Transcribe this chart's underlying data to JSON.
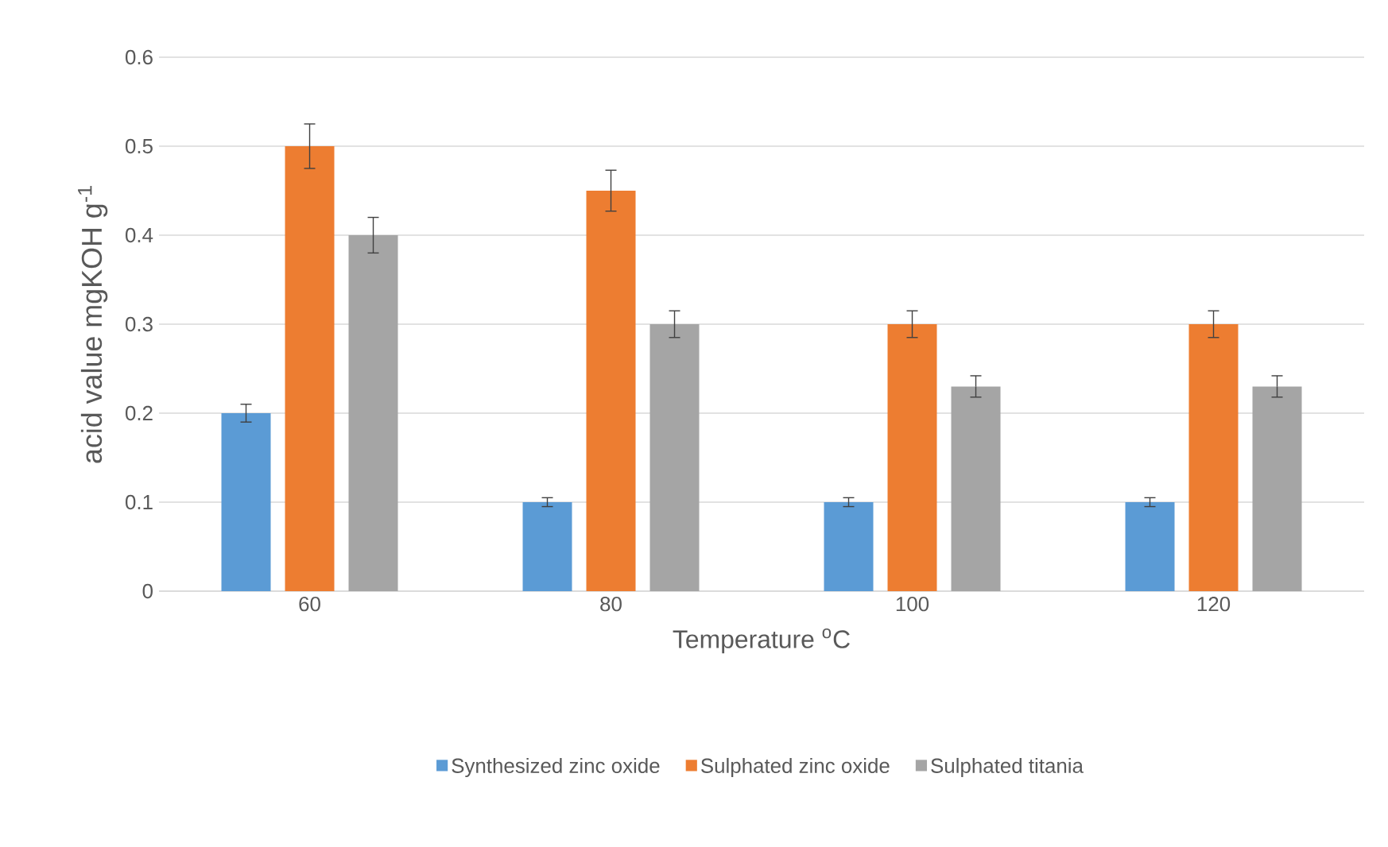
{
  "chart_data": {
    "type": "bar",
    "xlabel": "Temperature  $^{o}$C",
    "ylabel": "acid value mgKOH g$^{-1}$",
    "categories": [
      "60",
      "80",
      "100",
      "120"
    ],
    "series": [
      {
        "name": "Synthesized zinc oxide",
        "color": "#5b9bd5",
        "values": [
          0.2,
          0.1,
          0.1,
          0.1
        ],
        "errors": [
          0.01,
          0.005,
          0.005,
          0.005
        ]
      },
      {
        "name": "Sulphated zinc oxide",
        "color": "#ed7d31",
        "values": [
          0.5,
          0.45,
          0.3,
          0.3
        ],
        "errors": [
          0.025,
          0.023,
          0.015,
          0.015
        ]
      },
      {
        "name": "Sulphated titania",
        "color": "#a5a5a5",
        "values": [
          0.4,
          0.3,
          0.23,
          0.23
        ],
        "errors": [
          0.02,
          0.015,
          0.012,
          0.012
        ]
      }
    ],
    "ylim": [
      0,
      0.6
    ],
    "yticks": [
      0,
      0.1,
      0.2,
      0.3,
      0.4,
      0.5,
      0.6
    ],
    "grid": "y",
    "legend": "bottom"
  }
}
